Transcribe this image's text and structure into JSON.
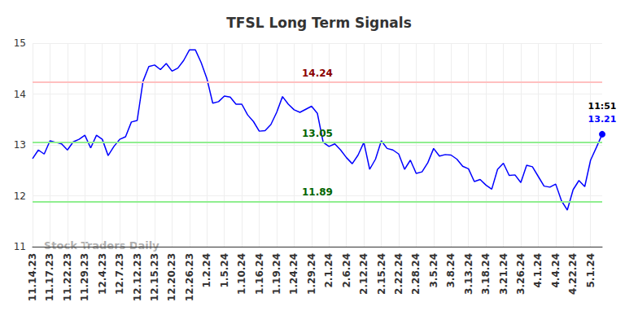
{
  "chart_data": {
    "type": "line",
    "title": "TFSL Long Term Signals",
    "watermark": "Stock Traders Daily",
    "last_time": "11:51",
    "color": "#0000ff",
    "marker": "circle",
    "grid": true,
    "ylim": [
      11,
      15
    ],
    "yticks": [
      11,
      12,
      13,
      14,
      15
    ],
    "reference_lines": [
      {
        "value": 14.24,
        "color": "#ffc0c0",
        "label_color": "#8b0000"
      },
      {
        "value": 13.05,
        "color": "#90ee90",
        "label_color": "#006400"
      },
      {
        "value": 11.89,
        "color": "#90ee90",
        "label_color": "#006400"
      }
    ],
    "categories": [
      "11.14.23",
      null,
      null,
      "11.17.23",
      null,
      null,
      "11.22.23",
      null,
      null,
      "11.29.23",
      null,
      null,
      "12.4.23",
      null,
      null,
      "12.7.23",
      null,
      null,
      "12.12.23",
      null,
      null,
      "12.15.23",
      null,
      null,
      "12.20.23",
      null,
      null,
      "12.26.23",
      null,
      null,
      "1.2.24",
      null,
      null,
      "1.5.24",
      null,
      null,
      "1.10.24",
      null,
      null,
      "1.16.24",
      null,
      null,
      "1.19.24",
      null,
      null,
      "1.24.24",
      null,
      null,
      "1.29.24",
      null,
      null,
      "2.1.24",
      null,
      null,
      "2.6.24",
      null,
      null,
      "2.12.24",
      null,
      null,
      "2.15.24",
      null,
      null,
      "2.22.24",
      null,
      null,
      "2.28.24",
      null,
      null,
      "3.5.24",
      null,
      null,
      "3.8.24",
      null,
      null,
      "3.13.24",
      null,
      null,
      "3.18.24",
      null,
      null,
      "3.21.24",
      null,
      null,
      "3.26.24",
      null,
      null,
      "4.1.24",
      null,
      null,
      "4.4.24",
      null,
      null,
      "4.22.24",
      null,
      null,
      "5.1.24",
      null,
      null
    ],
    "values": [
      12.73,
      12.9,
      12.82,
      13.08,
      13.05,
      13.02,
      12.9,
      13.06,
      13.11,
      13.19,
      12.94,
      13.19,
      13.11,
      12.79,
      12.97,
      13.11,
      13.16,
      13.45,
      13.48,
      14.25,
      14.54,
      14.57,
      14.48,
      14.6,
      14.45,
      14.51,
      14.66,
      14.87,
      14.87,
      14.62,
      14.3,
      13.82,
      13.85,
      13.96,
      13.94,
      13.8,
      13.8,
      13.59,
      13.46,
      13.27,
      13.28,
      13.4,
      13.64,
      13.95,
      13.8,
      13.69,
      13.64,
      13.7,
      13.76,
      13.62,
      13.05,
      12.97,
      13.02,
      12.9,
      12.75,
      12.63,
      12.8,
      13.05,
      12.52,
      12.72,
      13.08,
      12.93,
      12.9,
      12.82,
      12.52,
      12.7,
      12.44,
      12.47,
      12.65,
      12.93,
      12.78,
      12.81,
      12.8,
      12.72,
      12.58,
      12.53,
      12.28,
      12.32,
      12.21,
      12.13,
      12.52,
      12.64,
      12.4,
      12.41,
      12.26,
      12.6,
      12.57,
      12.38,
      12.19,
      12.17,
      12.23,
      11.9,
      11.72,
      12.12,
      12.3,
      12.18,
      12.7,
      12.95,
      13.21
    ]
  }
}
